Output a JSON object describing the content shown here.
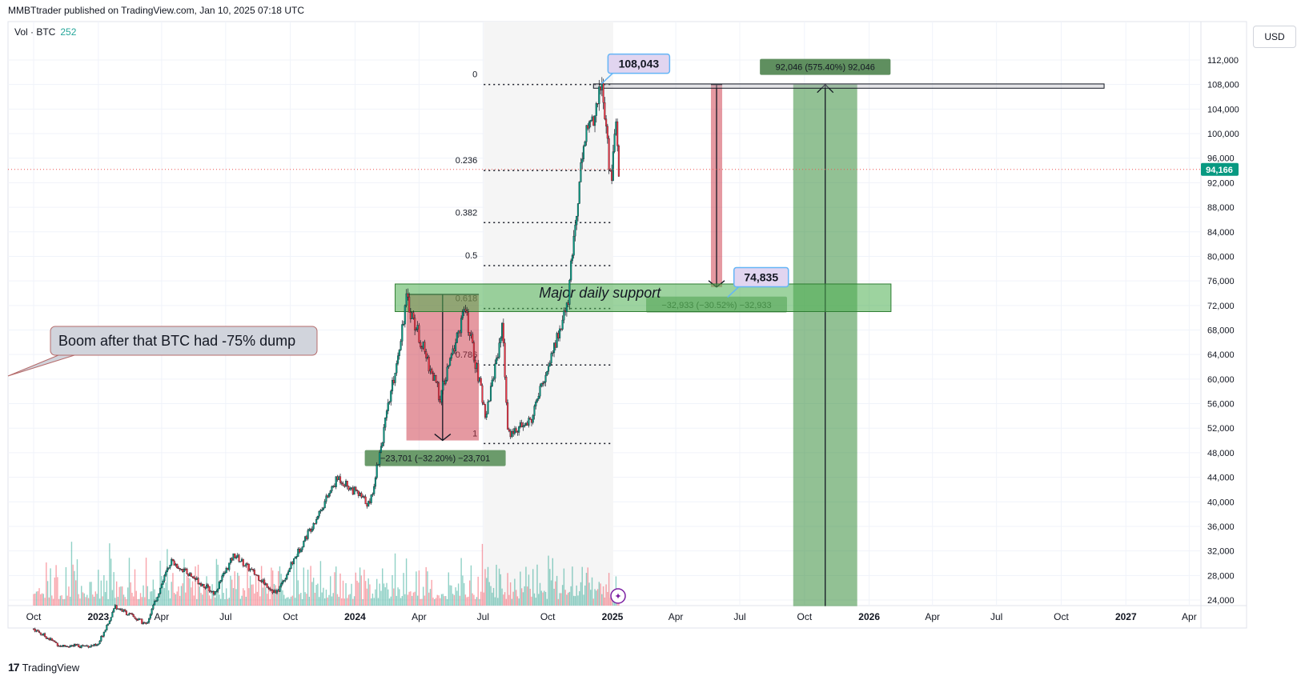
{
  "header": {
    "published": "MMBTtrader published on TradingView.com, Jan 10, 2025 07:18 UTC"
  },
  "legend": {
    "label": "Vol · BTC",
    "value": "252"
  },
  "currency_button": "USD",
  "footer": {
    "logo": "17",
    "brand": "TradingView"
  },
  "chart_data": {
    "type": "candlestick",
    "symbol": "BTC",
    "currency": "USD",
    "y_ticks": [
      24000,
      28000,
      32000,
      36000,
      40000,
      44000,
      48000,
      52000,
      56000,
      60000,
      64000,
      68000,
      72000,
      76000,
      80000,
      84000,
      88000,
      92000,
      96000,
      100000,
      104000,
      108000,
      112000
    ],
    "y_tick_labels": [
      "24,000",
      "28,000",
      "32,000",
      "36,000",
      "40,000",
      "44,000",
      "48,000",
      "52,000",
      "56,000",
      "60,000",
      "64,000",
      "68,000",
      "72,000",
      "76,000",
      "80,000",
      "84,000",
      "88,000",
      "92,000",
      "96,000",
      "100,000",
      "104,000",
      "108,000",
      "112,000"
    ],
    "x_ticks": [
      {
        "date": "2022-10-01",
        "label": "Oct",
        "bold": false
      },
      {
        "date": "2023-01-01",
        "label": "2023",
        "bold": true
      },
      {
        "date": "2023-04-01",
        "label": "Apr",
        "bold": false
      },
      {
        "date": "2023-07-01",
        "label": "Jul",
        "bold": false
      },
      {
        "date": "2023-10-01",
        "label": "Oct",
        "bold": false
      },
      {
        "date": "2024-01-01",
        "label": "2024",
        "bold": true
      },
      {
        "date": "2024-04-01",
        "label": "Apr",
        "bold": false
      },
      {
        "date": "2024-07-01",
        "label": "Jul",
        "bold": false
      },
      {
        "date": "2024-10-01",
        "label": "Oct",
        "bold": false
      },
      {
        "date": "2025-01-01",
        "label": "2025",
        "bold": true
      },
      {
        "date": "2025-04-01",
        "label": "Apr",
        "bold": false
      },
      {
        "date": "2025-07-01",
        "label": "Jul",
        "bold": false
      },
      {
        "date": "2025-10-01",
        "label": "Oct",
        "bold": false
      },
      {
        "date": "2026-01-01",
        "label": "2026",
        "bold": true
      },
      {
        "date": "2026-04-01",
        "label": "Apr",
        "bold": false
      },
      {
        "date": "2026-07-01",
        "label": "Jul",
        "bold": false
      },
      {
        "date": "2026-10-01",
        "label": "Oct",
        "bold": false
      },
      {
        "date": "2027-01-01",
        "label": "2027",
        "bold": true
      },
      {
        "date": "2027-04-01",
        "label": "Apr",
        "bold": false
      }
    ],
    "last_price": 94166,
    "last_price_label": "94,166",
    "price_path": [
      [
        "2022-10-01",
        19300
      ],
      [
        "2022-11-08",
        16500
      ],
      [
        "2022-12-31",
        16550
      ],
      [
        "2023-01-25",
        23000
      ],
      [
        "2023-03-10",
        20000
      ],
      [
        "2023-04-14",
        30400
      ],
      [
        "2023-06-15",
        25100
      ],
      [
        "2023-07-13",
        31400
      ],
      [
        "2023-09-11",
        25000
      ],
      [
        "2023-10-24",
        34500
      ],
      [
        "2023-12-08",
        44000
      ],
      [
        "2024-01-22",
        39500
      ],
      [
        "2024-02-28",
        62000
      ],
      [
        "2024-03-14",
        73000
      ],
      [
        "2024-05-01",
        57000
      ],
      [
        "2024-06-05",
        71500
      ],
      [
        "2024-07-05",
        54000
      ],
      [
        "2024-07-29",
        69000
      ],
      [
        "2024-08-05",
        51000
      ],
      [
        "2024-09-06",
        53000
      ],
      [
        "2024-10-29",
        72000
      ],
      [
        "2024-11-13",
        90000
      ],
      [
        "2024-11-22",
        99500
      ],
      [
        "2024-12-05",
        103000
      ],
      [
        "2024-12-17",
        108000
      ],
      [
        "2024-12-30",
        92000
      ],
      [
        "2025-01-06",
        102200
      ],
      [
        "2025-01-10",
        94166
      ]
    ],
    "volume_note": "volume histogram at bottom, green/red per candle",
    "fibonacci": {
      "range": [
        "2024-07-02",
        "2025-01-02"
      ],
      "levels": [
        {
          "ratio": "0",
          "price": 108000
        },
        {
          "ratio": "0.236",
          "price": 94000
        },
        {
          "ratio": "0.382",
          "price": 85500
        },
        {
          "ratio": "0.5",
          "price": 78500
        },
        {
          "ratio": "0.618",
          "price": 71500
        },
        {
          "ratio": "0.786",
          "price": 62300
        },
        {
          "ratio": "1",
          "price": 49500
        }
      ]
    },
    "support_zone": {
      "label": "Major daily support",
      "from": "2024-02-27",
      "to": "2026-02-01",
      "low": 71000,
      "high": 75500
    },
    "resistance_zone": {
      "from": "2024-12-05",
      "to": "2026-12-01",
      "low": 107400,
      "high": 108100
    },
    "measures": [
      {
        "type": "down",
        "from": "2024-03-14",
        "to": "2024-06-25",
        "top": 73800,
        "bottom": 50000,
        "label": "−23,701 (−32.20%) −23,701"
      },
      {
        "type": "down",
        "from": "2025-05-21",
        "to": "2025-06-06",
        "top": 108000,
        "bottom": 75000,
        "label": "−32,933 (−30.52%) −32,933"
      },
      {
        "type": "up",
        "from": "2025-09-15",
        "to": "2025-12-15",
        "top": 108000,
        "bottom": 23000,
        "label": "92,046 (575.40%) 92,046"
      }
    ],
    "price_labels": [
      {
        "text": "108,043",
        "date": "2025-01-02",
        "price": 111400
      },
      {
        "text": "74,835",
        "date": "2025-06-25",
        "price": 76600
      }
    ],
    "annotation": {
      "text": "Boom after that BTC had -75% dump"
    }
  }
}
